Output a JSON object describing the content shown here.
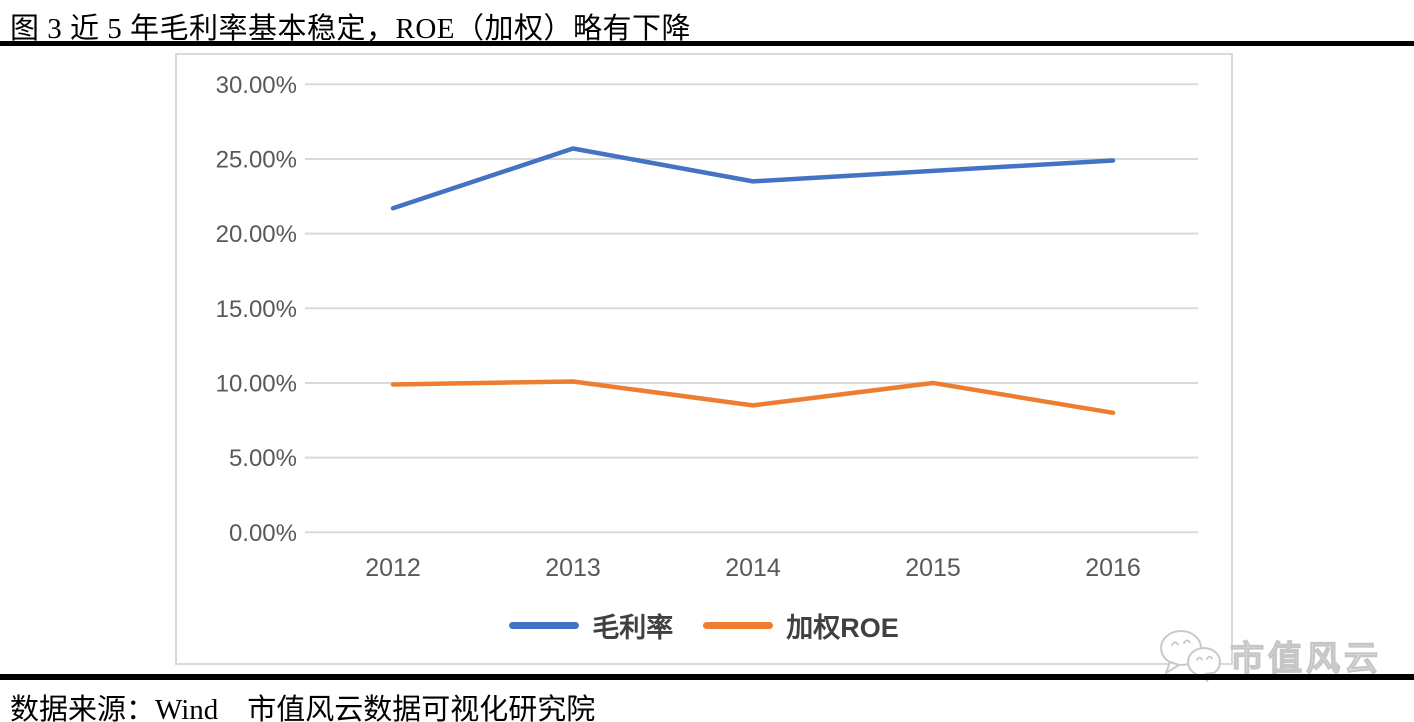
{
  "page": {
    "title": "图 3 近 5 年毛利率基本稳定，ROE（加权）略有下降",
    "source_line": "数据来源：Wind　市值风云数据可视化研究院",
    "watermark": {
      "icon": "wechat-bubbles-icon",
      "text": "市值风云"
    }
  },
  "colors": {
    "gross_margin_line": "#4472C4",
    "weighted_roe_line": "#ED7D31",
    "gridline": "#D9D9D9",
    "axis_text": "#595959",
    "legend_text": "#404040",
    "divider_rule": "#000000",
    "chart_border": "#D9D9D9",
    "watermark": "#C6C6C6"
  },
  "chart_data": {
    "type": "line",
    "title": "",
    "xlabel": "",
    "ylabel": "",
    "units": "%",
    "categories": [
      "2012",
      "2013",
      "2014",
      "2015",
      "2016"
    ],
    "series": [
      {
        "name": "毛利率",
        "color": "#4472C4",
        "values": [
          21.7,
          25.7,
          23.5,
          24.2,
          24.9
        ]
      },
      {
        "name": "加权ROE",
        "color": "#ED7D31",
        "values": [
          9.9,
          10.1,
          8.5,
          10.0,
          8.0
        ]
      }
    ],
    "ylim": [
      0,
      30
    ],
    "ytick_step": 5,
    "ytick_labels": [
      "0.00%",
      "5.00%",
      "10.00%",
      "15.00%",
      "20.00%",
      "25.00%",
      "30.00%"
    ],
    "grid": true,
    "vertical_grid": false,
    "legend_position": "bottom"
  }
}
